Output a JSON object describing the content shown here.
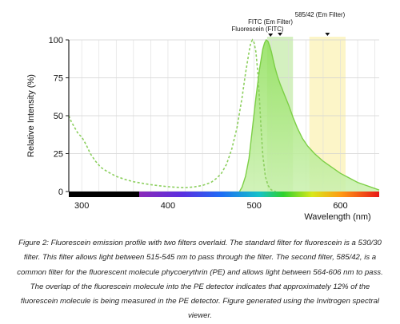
{
  "chart_data": {
    "type": "area",
    "xlabel": "Wavelength (nm)",
    "ylabel": "Relative Intensity (%)",
    "xlim": [
      285,
      645
    ],
    "ylim": [
      0,
      100
    ],
    "x_ticks": [
      300,
      400,
      500,
      600
    ],
    "y_ticks": [
      0,
      25,
      50,
      75,
      100
    ],
    "grid": true,
    "filters": [
      {
        "name": "FITC (Em Filter)",
        "range": [
          515,
          545
        ],
        "center": 530,
        "color": "#c5ebab"
      },
      {
        "name": "585/42 (Em Filter)",
        "range": [
          564,
          606
        ],
        "center": 585,
        "color": "#fbf2b5"
      }
    ],
    "annotations": [
      {
        "text": "585/42 (Em Filter)"
      },
      {
        "text": "FITC (Em Filter)"
      },
      {
        "text": "Fluorescein (FITC)",
        "marker_x": 519
      }
    ],
    "series": [
      {
        "style": "dashed",
        "color": "#8ccf5e",
        "x": [
          285,
          288,
          292,
          296,
          300,
          305,
          310,
          316,
          322,
          330,
          340,
          350,
          360,
          370,
          380,
          390,
          400,
          410,
          420,
          430,
          440,
          450,
          456,
          462,
          468,
          474,
          480,
          486,
          490,
          494,
          496,
          498,
          500,
          502,
          504,
          506,
          508,
          510,
          513,
          516,
          520,
          525
        ],
        "values": [
          50,
          46,
          42,
          38,
          36,
          31,
          25,
          20,
          16,
          13,
          10,
          8,
          6.5,
          5.5,
          4.5,
          3.8,
          3.2,
          2.8,
          2.6,
          3,
          4,
          6,
          8.5,
          12,
          18,
          28,
          42,
          62,
          78,
          92,
          98,
          100,
          98,
          92,
          80,
          62,
          42,
          24,
          10,
          4,
          1,
          0
        ]
      },
      {
        "style": "solid-filled",
        "color": "#7ccf45",
        "x": [
          483,
          486,
          490,
          494,
          498,
          502,
          506,
          510,
          512,
          514,
          516,
          518,
          520,
          522,
          524,
          527,
          530,
          535,
          540,
          545,
          550,
          556,
          562,
          570,
          580,
          590,
          600,
          610,
          620,
          630,
          640,
          645
        ],
        "values": [
          0,
          3,
          10,
          22,
          42,
          62,
          80,
          94,
          98,
          100,
          99,
          96,
          92,
          87,
          82,
          76,
          71,
          64,
          57,
          49,
          42,
          35,
          30,
          25,
          20,
          16,
          12,
          9,
          6,
          4,
          2,
          1
        ]
      }
    ]
  },
  "caption": "Figure 2: Fluorescein emission profile with two filters overlaid. The standard filter for fluorescein is a 530/30 filter. This filter allows light between 515-545 nm to pass through the filter. The second filter, 585/42, is a common filter for the fluorescent molecule phycoerythrin (PE) and allows light between 564-606 nm to pass. The overlap of the fluorescein molecule into the PE detector indicates that approximately 12% of the fluorescein molecule is being measured in the PE detector. Figure generated using the Invitrogen spectral viewer."
}
